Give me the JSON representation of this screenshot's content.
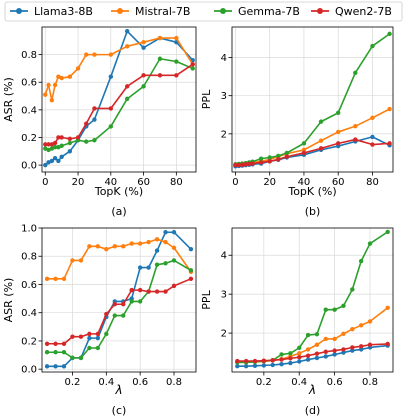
{
  "legend": {
    "entries": [
      {
        "name": "Llama3-8B",
        "color": "#1f77b4"
      },
      {
        "name": "Mistral-7B",
        "color": "#ff7f0e"
      },
      {
        "name": "Gemma-7B",
        "color": "#2ca02c"
      },
      {
        "name": "Qwen2-7B",
        "color": "#d62728"
      }
    ]
  },
  "chart_data": [
    {
      "type": "line",
      "panel_label": "(a)",
      "xlabel": "TopK (%)",
      "ylabel": "ASR (%)",
      "xlim": [
        -2,
        92
      ],
      "ylim": [
        -0.05,
        1.0
      ],
      "xticks": [
        0,
        20,
        40,
        60,
        80
      ],
      "yticks": [
        0.0,
        0.2,
        0.4,
        0.6,
        0.8
      ],
      "grid": true,
      "series": [
        {
          "name": "Llama3-8B",
          "color": "#1f77b4",
          "x": [
            0,
            2,
            4,
            6,
            8,
            10,
            15,
            20,
            25,
            30,
            40,
            50,
            60,
            70,
            80,
            90
          ],
          "y": [
            0.0,
            0.02,
            0.03,
            0.05,
            0.03,
            0.06,
            0.1,
            0.18,
            0.28,
            0.33,
            0.64,
            0.97,
            0.85,
            0.92,
            0.89,
            0.76
          ]
        },
        {
          "name": "Mistral-7B",
          "color": "#ff7f0e",
          "x": [
            0,
            2,
            4,
            6,
            8,
            10,
            15,
            20,
            25,
            30,
            40,
            50,
            60,
            70,
            80,
            90
          ],
          "y": [
            0.51,
            0.58,
            0.47,
            0.58,
            0.64,
            0.63,
            0.64,
            0.7,
            0.8,
            0.8,
            0.8,
            0.86,
            0.89,
            0.92,
            0.92,
            0.73
          ]
        },
        {
          "name": "Gemma-7B",
          "color": "#2ca02c",
          "x": [
            0,
            2,
            4,
            6,
            8,
            10,
            15,
            20,
            25,
            30,
            40,
            50,
            60,
            70,
            80,
            90
          ],
          "y": [
            0.12,
            0.11,
            0.12,
            0.13,
            0.13,
            0.14,
            0.16,
            0.18,
            0.17,
            0.18,
            0.28,
            0.48,
            0.57,
            0.77,
            0.75,
            0.7
          ]
        },
        {
          "name": "Qwen2-7B",
          "color": "#d62728",
          "x": [
            0,
            2,
            4,
            6,
            8,
            10,
            15,
            20,
            25,
            30,
            40,
            50,
            60,
            70,
            80,
            90
          ],
          "y": [
            0.15,
            0.15,
            0.15,
            0.16,
            0.2,
            0.2,
            0.19,
            0.2,
            0.3,
            0.41,
            0.41,
            0.57,
            0.65,
            0.65,
            0.65,
            0.73
          ]
        }
      ]
    },
    {
      "type": "line",
      "panel_label": "(b)",
      "xlabel": "TopK (%)",
      "ylabel": "PPL",
      "xlim": [
        -2,
        92
      ],
      "ylim": [
        1.0,
        4.8
      ],
      "xticks": [
        0,
        20,
        40,
        60,
        80
      ],
      "yticks": [
        2,
        3,
        4
      ],
      "grid": true,
      "series": [
        {
          "name": "Llama3-8B",
          "color": "#1f77b4",
          "x": [
            0,
            2,
            4,
            6,
            8,
            10,
            15,
            20,
            25,
            30,
            40,
            50,
            60,
            70,
            80,
            90
          ],
          "y": [
            1.15,
            1.16,
            1.17,
            1.18,
            1.19,
            1.2,
            1.22,
            1.28,
            1.32,
            1.38,
            1.45,
            1.58,
            1.68,
            1.8,
            1.92,
            1.7
          ]
        },
        {
          "name": "Mistral-7B",
          "color": "#ff7f0e",
          "x": [
            0,
            2,
            4,
            6,
            8,
            10,
            15,
            20,
            25,
            30,
            40,
            50,
            60,
            70,
            80,
            90
          ],
          "y": [
            1.2,
            1.2,
            1.21,
            1.22,
            1.23,
            1.25,
            1.28,
            1.33,
            1.4,
            1.48,
            1.58,
            1.82,
            2.05,
            2.2,
            2.42,
            2.65
          ]
        },
        {
          "name": "Gemma-7B",
          "color": "#2ca02c",
          "x": [
            0,
            2,
            4,
            6,
            8,
            10,
            15,
            20,
            25,
            30,
            40,
            50,
            60,
            70,
            80,
            90
          ],
          "y": [
            1.2,
            1.21,
            1.22,
            1.23,
            1.25,
            1.27,
            1.35,
            1.38,
            1.42,
            1.5,
            1.75,
            2.32,
            2.55,
            3.6,
            4.3,
            4.62
          ]
        },
        {
          "name": "Qwen2-7B",
          "color": "#d62728",
          "x": [
            0,
            2,
            4,
            6,
            8,
            10,
            15,
            20,
            25,
            30,
            40,
            50,
            60,
            70,
            80,
            90
          ],
          "y": [
            1.18,
            1.18,
            1.19,
            1.2,
            1.21,
            1.22,
            1.25,
            1.28,
            1.33,
            1.4,
            1.5,
            1.62,
            1.75,
            1.85,
            1.72,
            1.75
          ]
        }
      ]
    },
    {
      "type": "line",
      "panel_label": "(c)",
      "xlabel": "λ",
      "ylabel": "ASR (%)",
      "xlim": [
        0.02,
        0.93
      ],
      "ylim": [
        -0.02,
        1.0
      ],
      "xticks": [
        0.2,
        0.4,
        0.6,
        0.8
      ],
      "yticks": [
        0.0,
        0.2,
        0.4,
        0.6,
        0.8,
        1.0
      ],
      "grid": true,
      "series": [
        {
          "name": "Llama3-8B",
          "color": "#1f77b4",
          "x": [
            0.05,
            0.1,
            0.15,
            0.2,
            0.25,
            0.3,
            0.35,
            0.4,
            0.45,
            0.5,
            0.55,
            0.6,
            0.65,
            0.7,
            0.75,
            0.8,
            0.9
          ],
          "y": [
            0.02,
            0.02,
            0.02,
            0.08,
            0.08,
            0.22,
            0.22,
            0.37,
            0.48,
            0.48,
            0.5,
            0.72,
            0.72,
            0.84,
            0.97,
            0.97,
            0.85
          ]
        },
        {
          "name": "Mistral-7B",
          "color": "#ff7f0e",
          "x": [
            0.05,
            0.1,
            0.15,
            0.2,
            0.25,
            0.3,
            0.35,
            0.4,
            0.45,
            0.5,
            0.55,
            0.6,
            0.65,
            0.7,
            0.75,
            0.8,
            0.9
          ],
          "y": [
            0.64,
            0.64,
            0.64,
            0.77,
            0.77,
            0.87,
            0.87,
            0.85,
            0.87,
            0.87,
            0.89,
            0.89,
            0.9,
            0.92,
            0.9,
            0.86,
            0.69
          ]
        },
        {
          "name": "Gemma-7B",
          "color": "#2ca02c",
          "x": [
            0.05,
            0.1,
            0.15,
            0.2,
            0.25,
            0.3,
            0.35,
            0.4,
            0.45,
            0.5,
            0.55,
            0.6,
            0.65,
            0.7,
            0.75,
            0.8,
            0.9
          ],
          "y": [
            0.12,
            0.12,
            0.12,
            0.08,
            0.08,
            0.15,
            0.15,
            0.25,
            0.38,
            0.38,
            0.48,
            0.48,
            0.55,
            0.74,
            0.75,
            0.77,
            0.7
          ]
        },
        {
          "name": "Qwen2-7B",
          "color": "#d62728",
          "x": [
            0.05,
            0.1,
            0.15,
            0.2,
            0.25,
            0.3,
            0.35,
            0.4,
            0.45,
            0.5,
            0.55,
            0.6,
            0.65,
            0.7,
            0.75,
            0.8,
            0.9
          ],
          "y": [
            0.18,
            0.18,
            0.18,
            0.23,
            0.23,
            0.25,
            0.25,
            0.39,
            0.46,
            0.46,
            0.56,
            0.56,
            0.55,
            0.55,
            0.55,
            0.59,
            0.64
          ]
        }
      ]
    },
    {
      "type": "line",
      "panel_label": "(d)",
      "xlabel": "λ",
      "ylabel": "PPL",
      "xlim": [
        0.02,
        0.93
      ],
      "ylim": [
        1.0,
        4.7
      ],
      "xticks": [
        0.2,
        0.4,
        0.6,
        0.8
      ],
      "yticks": [
        2,
        3,
        4
      ],
      "grid": true,
      "series": [
        {
          "name": "Llama3-8B",
          "color": "#1f77b4",
          "x": [
            0.05,
            0.1,
            0.15,
            0.2,
            0.25,
            0.3,
            0.35,
            0.4,
            0.45,
            0.5,
            0.55,
            0.6,
            0.65,
            0.7,
            0.75,
            0.8,
            0.9
          ],
          "y": [
            1.15,
            1.15,
            1.16,
            1.17,
            1.18,
            1.2,
            1.23,
            1.27,
            1.32,
            1.36,
            1.4,
            1.45,
            1.5,
            1.55,
            1.58,
            1.63,
            1.68
          ]
        },
        {
          "name": "Mistral-7B",
          "color": "#ff7f0e",
          "x": [
            0.05,
            0.1,
            0.15,
            0.2,
            0.25,
            0.3,
            0.35,
            0.4,
            0.45,
            0.5,
            0.55,
            0.6,
            0.65,
            0.7,
            0.75,
            0.8,
            0.9
          ],
          "y": [
            1.25,
            1.25,
            1.26,
            1.27,
            1.3,
            1.33,
            1.4,
            1.48,
            1.58,
            1.7,
            1.85,
            1.85,
            1.98,
            2.1,
            2.2,
            2.3,
            2.65
          ]
        },
        {
          "name": "Gemma-7B",
          "color": "#2ca02c",
          "x": [
            0.05,
            0.1,
            0.15,
            0.2,
            0.25,
            0.3,
            0.35,
            0.4,
            0.45,
            0.5,
            0.55,
            0.6,
            0.65,
            0.7,
            0.75,
            0.8,
            0.9
          ],
          "y": [
            1.25,
            1.25,
            1.26,
            1.28,
            1.3,
            1.45,
            1.48,
            1.62,
            1.95,
            1.97,
            2.6,
            2.6,
            2.7,
            3.12,
            3.85,
            4.3,
            4.6
          ]
        },
        {
          "name": "Qwen2-7B",
          "color": "#d62728",
          "x": [
            0.05,
            0.1,
            0.15,
            0.2,
            0.25,
            0.3,
            0.35,
            0.4,
            0.45,
            0.5,
            0.55,
            0.6,
            0.65,
            0.7,
            0.75,
            0.8,
            0.9
          ],
          "y": [
            1.28,
            1.28,
            1.28,
            1.29,
            1.3,
            1.32,
            1.35,
            1.38,
            1.42,
            1.47,
            1.52,
            1.55,
            1.58,
            1.63,
            1.66,
            1.7,
            1.72
          ]
        }
      ]
    }
  ]
}
